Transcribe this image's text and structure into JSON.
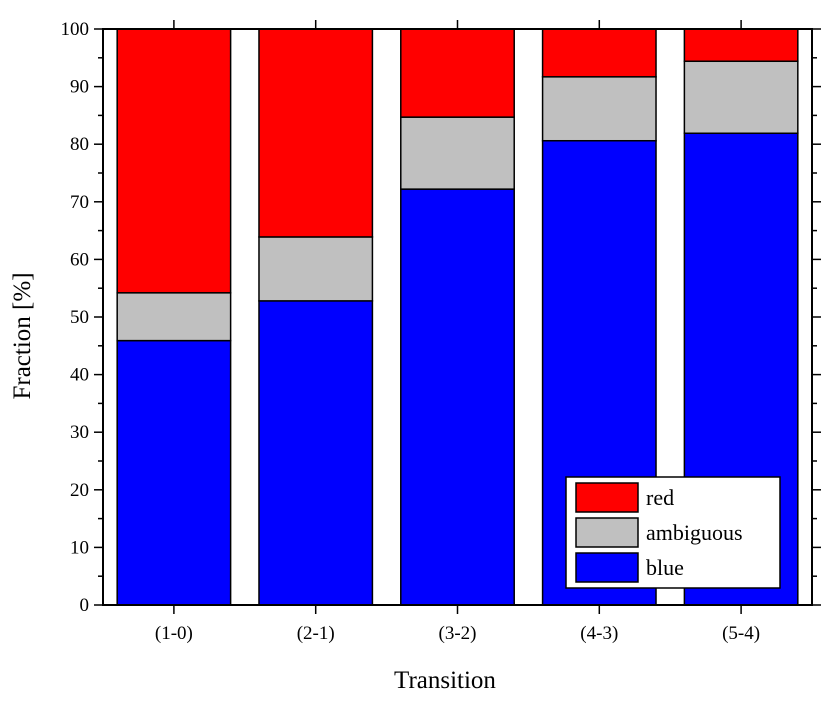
{
  "chart_data": {
    "type": "bar",
    "stacked": true,
    "title": "",
    "xlabel": "Transition",
    "ylabel": "Fraction [%]",
    "categories": [
      "(1-0)",
      "(2-1)",
      "(3-2)",
      "(4-3)",
      "(5-4)"
    ],
    "series": [
      {
        "name": "blue",
        "color": "#0000ff",
        "values": [
          45.9,
          52.8,
          72.2,
          80.6,
          81.9
        ]
      },
      {
        "name": "ambiguous",
        "color": "#c0c0c0",
        "values": [
          8.3,
          11.1,
          12.5,
          11.1,
          12.5
        ]
      },
      {
        "name": "red",
        "color": "#ff0000",
        "values": [
          45.8,
          36.1,
          15.3,
          8.3,
          5.6
        ]
      }
    ],
    "ylim": [
      0,
      100
    ],
    "yticks": [
      0,
      10,
      20,
      30,
      40,
      50,
      60,
      70,
      80,
      90,
      100
    ],
    "grid": false,
    "legend": {
      "position": "bottom-right",
      "order": [
        "red",
        "ambiguous",
        "blue"
      ]
    }
  }
}
